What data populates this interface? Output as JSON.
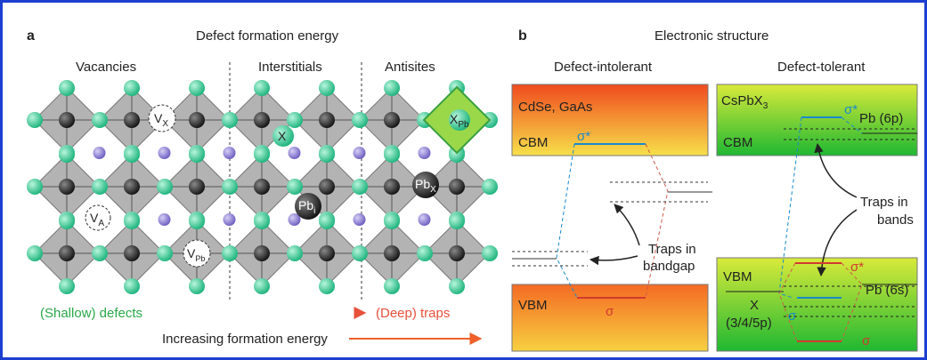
{
  "panel_a": {
    "letter": "a",
    "title": "Defect formation energy",
    "sections": [
      "Vacancies",
      "Interstitials",
      "Antisites"
    ],
    "defects": {
      "vx": {
        "base": "V",
        "sub": "X"
      },
      "va": {
        "base": "V",
        "sub": "A"
      },
      "vpb": {
        "base": "V",
        "sub": "Pb"
      },
      "x": {
        "base": "X"
      },
      "pbi": {
        "base": "Pb",
        "sub": "i"
      },
      "pbx": {
        "base": "Pb",
        "sub": "X"
      },
      "xpb": {
        "base": "X",
        "sub": "Pb"
      }
    },
    "shallow": "(Shallow) defects",
    "deep": "(Deep) traps",
    "increasing": "Increasing formation energy"
  },
  "panel_b": {
    "letter": "b",
    "title": "Electronic structure",
    "intolerant": {
      "heading": "Defect-intolerant",
      "materials": "CdSe, GaAs",
      "cbm": "CBM",
      "sigma_star": "σ*",
      "vbm": "VBM",
      "sigma": "σ",
      "traps": [
        "Traps in",
        "bandgap"
      ]
    },
    "tolerant": {
      "heading": "Defect-tolerant",
      "material": {
        "base": "CsPbX",
        "sub": "3"
      },
      "sigma_star_top": "σ*",
      "pb6p": "Pb (6p)",
      "cbm": "CBM",
      "traps": [
        "Traps in",
        "bands"
      ],
      "vbm": "VBM",
      "sigma_star_bottom": "σ*",
      "pb6s": "Pb (6s)",
      "x_orbital": [
        "X",
        "(3/4/5p)"
      ],
      "sigma_left": "σ",
      "sigma_bottom": "σ"
    }
  }
}
